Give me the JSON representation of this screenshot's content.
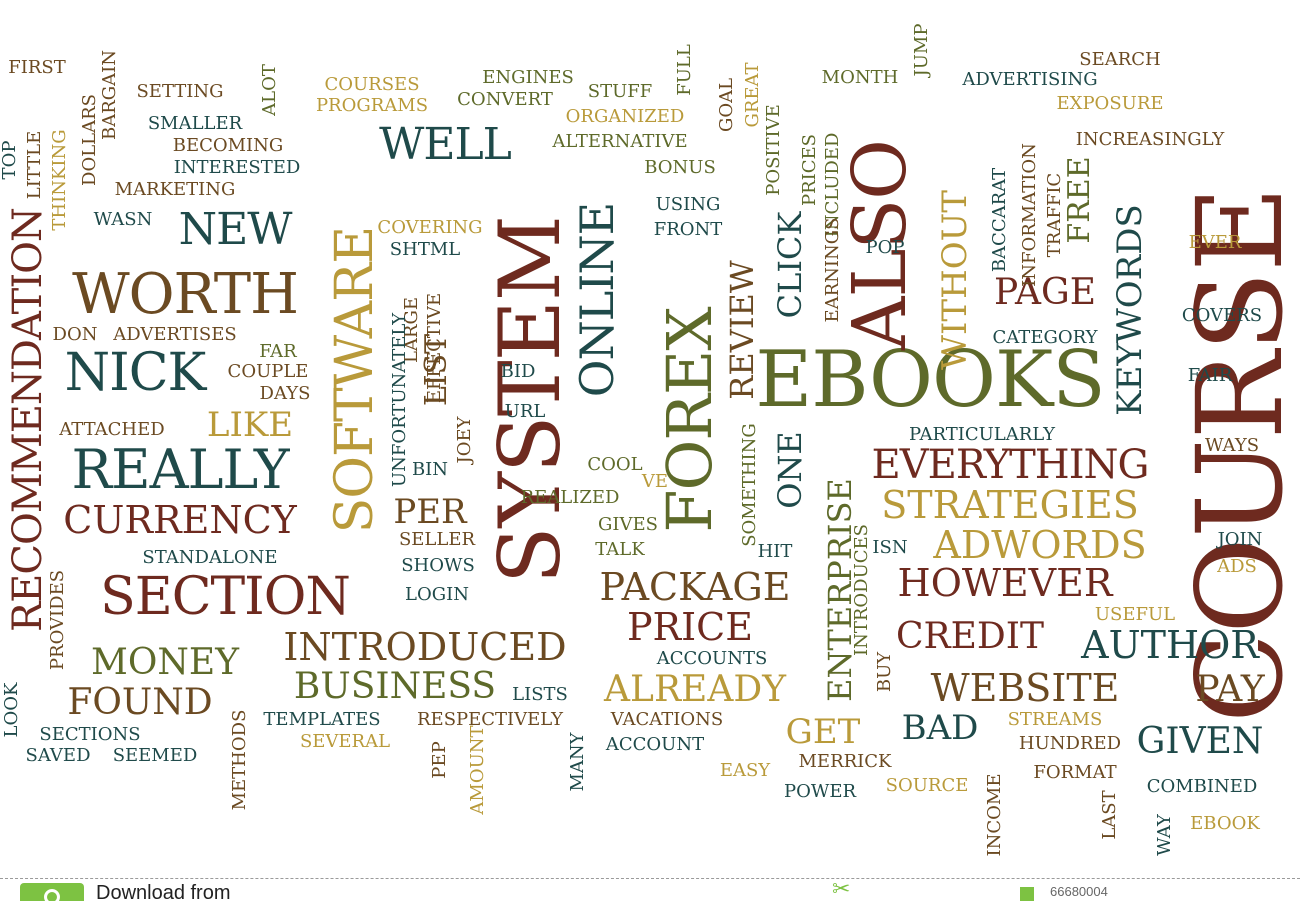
{
  "colors": {
    "dark_red": "#6e2a1f",
    "brown": "#6b4a22",
    "olive": "#5e6a2a",
    "teal": "#1f4a4a",
    "gold": "#b99a3a",
    "footer_green": "#7dc242"
  },
  "words": [
    "Course",
    "Ebooks",
    "System",
    "Forex",
    "Also",
    "Software",
    "Recommendation",
    "Online",
    "Really",
    "Section",
    "Worth",
    "New",
    "Well",
    "Nick",
    "Currency",
    "Everything",
    "Strategies",
    "Adwords",
    "However",
    "Package",
    "Introduced",
    "Author",
    "Credit",
    "Price",
    "Website",
    "Keywords",
    "Page",
    "Without",
    "Enterprise",
    "Review",
    "Money",
    "Found",
    "Business",
    "Already",
    "Pay",
    "Given",
    "Bad",
    "Get",
    "Like",
    "Click",
    "One",
    "List",
    "Free",
    "First",
    "Setting",
    "Courses",
    "Programs",
    "Convert",
    "Engines",
    "Stuff",
    "Full",
    "Month",
    "Search",
    "Advertising",
    "Exposure",
    "Increasingly",
    "Organized",
    "Alternative",
    "Bonus",
    "Goal",
    "Great",
    "Positive",
    "Prices",
    "Included",
    "Earnings",
    "Jump",
    "Alot",
    "Bargain",
    "Dollars",
    "Smaller",
    "Becoming",
    "Interested",
    "Top",
    "Little",
    "Thinking",
    "Marketing",
    "Wasn",
    "Covering",
    "Shtml",
    "Using",
    "Front",
    "Pop",
    "Baccarat",
    "Information",
    "Traffic",
    "Ever",
    "Covers",
    "Category",
    "Don",
    "Advertises",
    "Far",
    "Couple",
    "Days",
    "Large",
    "Effective",
    "Unfortunately",
    "Bid",
    "Url",
    "Joey",
    "Bin",
    "Attached",
    "Cool",
    "Realized",
    "Ve",
    "Something",
    "Particularly",
    "Fair",
    "Ways",
    "Per",
    "Gives",
    "Seller",
    "Talk",
    "Shows",
    "Standalone",
    "Login",
    "Hit",
    "Isn",
    "Introduces",
    "Join",
    "Ads",
    "Provides",
    "Useful",
    "Accounts",
    "Buy",
    "Streams",
    "Hundred",
    "Look",
    "Sections",
    "Saved",
    "Seemed",
    "Methods",
    "Templates",
    "Several",
    "Respectively",
    "Lists",
    "Pep",
    "Amount",
    "Many",
    "Vacations",
    "Account",
    "Easy",
    "Merrick",
    "Power",
    "Source",
    "Income",
    "Format",
    "Last",
    "Combined",
    "Way",
    "Ebook"
  ],
  "footer": {
    "download_text": "Download from",
    "image_id": "66680004"
  }
}
